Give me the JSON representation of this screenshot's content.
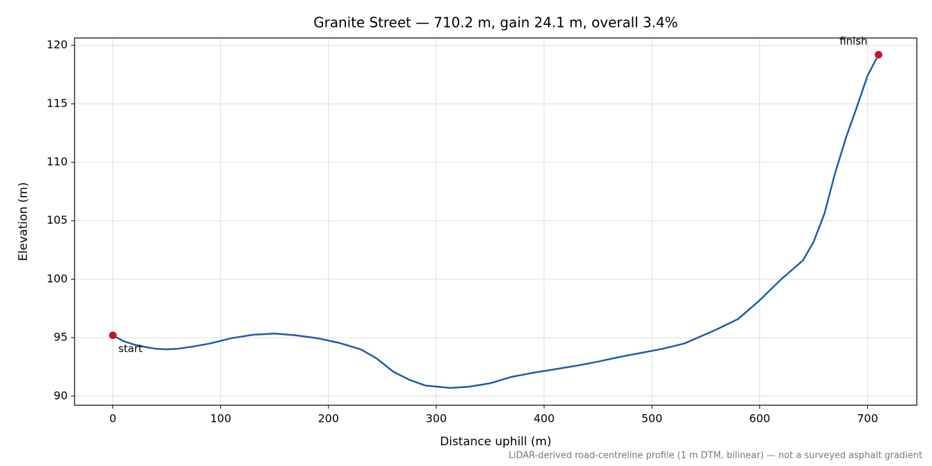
{
  "chart_data": {
    "type": "line",
    "title": "Granite Street — 710.2 m, gain 24.1 m, overall 3.4%",
    "x_label": "Distance uphill (m)",
    "y_label": "Elevation (m)",
    "note": "LiDAR-derived road-centreline profile (1 m DTM, bilinear) — not a surveyed asphalt gradient",
    "x": [
      0,
      10,
      20,
      30,
      40,
      50,
      60,
      75,
      90,
      110,
      130,
      150,
      170,
      190,
      210,
      230,
      245,
      260,
      275,
      290,
      313,
      330,
      350,
      370,
      390,
      410,
      430,
      450,
      470,
      490,
      510,
      530,
      550,
      560,
      580,
      600,
      620,
      640,
      650,
      660,
      670,
      680,
      690,
      700,
      710.2
    ],
    "values": [
      95.2,
      94.7,
      94.4,
      94.2,
      94.05,
      94.0,
      94.05,
      94.25,
      94.5,
      94.95,
      95.25,
      95.35,
      95.2,
      94.95,
      94.55,
      94.0,
      93.2,
      92.1,
      91.4,
      90.9,
      90.7,
      90.8,
      91.1,
      91.65,
      92.0,
      92.3,
      92.6,
      92.95,
      93.35,
      93.7,
      94.05,
      94.5,
      95.3,
      95.7,
      96.6,
      98.2,
      100.0,
      101.6,
      103.2,
      105.6,
      109.1,
      112.1,
      114.7,
      117.4,
      119.2
    ],
    "color": "#1f5aa8",
    "marker_color": "#c0182a",
    "annotations": [
      {
        "text": "start",
        "index": 0
      },
      {
        "text": "finish",
        "index": 44
      }
    ],
    "xlim": [
      -35.51,
      745.71
    ],
    "ylim": [
      89.22,
      120.63
    ],
    "xticks": [
      0,
      100,
      200,
      300,
      400,
      500,
      600,
      700
    ],
    "yticks": [
      90,
      95,
      100,
      105,
      110,
      115,
      120
    ],
    "grid": true
  }
}
